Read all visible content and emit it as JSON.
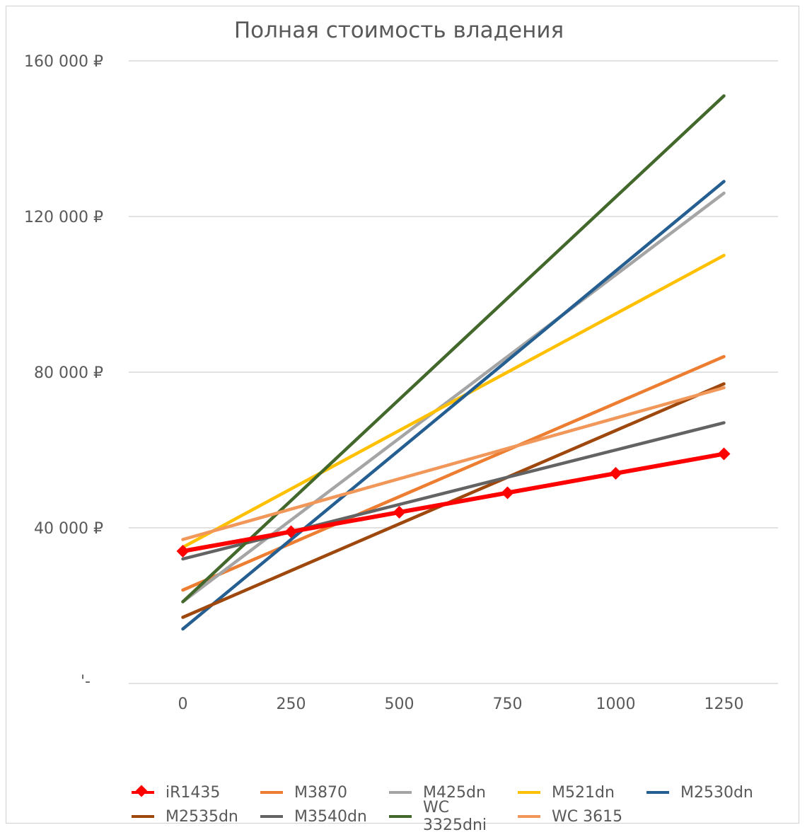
{
  "chart_data": {
    "type": "line",
    "title": "Полная стоимость владения",
    "xlabel": "",
    "ylabel": "",
    "x": [
      0,
      250,
      500,
      750,
      1000,
      1250
    ],
    "x_tick_labels": [
      "0",
      "250",
      "500",
      "750",
      "1000",
      "1250"
    ],
    "y_tick_labels": [
      "'-",
      "40 000 ₽",
      "80 000 ₽",
      "120 000 ₽",
      "160 000 ₽"
    ],
    "y_ticks": [
      0,
      40000,
      80000,
      120000,
      160000
    ],
    "ylim": [
      0,
      160000
    ],
    "xlim": [
      -125,
      1375
    ],
    "grid": "horizontal",
    "legend_position": "bottom",
    "series": [
      {
        "name": "iR1435",
        "color": "#ff0000",
        "marker": "diamond",
        "values": [
          34000,
          39000,
          44000,
          49000,
          54000,
          59000
        ]
      },
      {
        "name": "M3870",
        "color": "#ed7d31",
        "marker": "none",
        "values": [
          24000,
          36000,
          48000,
          60000,
          72000,
          84000
        ]
      },
      {
        "name": "M425dn",
        "color": "#a5a5a5",
        "marker": "none",
        "values": [
          21000,
          42000,
          63000,
          84000,
          105000,
          126000
        ]
      },
      {
        "name": "M521dn",
        "color": "#ffc000",
        "marker": "none",
        "values": [
          35000,
          50000,
          65000,
          80000,
          95000,
          110000
        ]
      },
      {
        "name": "M2530dn",
        "color": "#255e91",
        "marker": "none",
        "values": [
          14000,
          37000,
          60000,
          83000,
          106000,
          129000
        ]
      },
      {
        "name": "M2535dn",
        "color": "#9e480e",
        "marker": "none",
        "values": [
          17000,
          29000,
          41000,
          53000,
          65000,
          77000
        ]
      },
      {
        "name": "M3540dn",
        "color": "#636363",
        "marker": "none",
        "values": [
          32000,
          39000,
          46000,
          53000,
          60000,
          67000
        ]
      },
      {
        "name": "WC 3325dni",
        "color": "#43682b",
        "marker": "none",
        "values": [
          21000,
          47000,
          73000,
          99000,
          125000,
          151000
        ]
      },
      {
        "name": "WC 3615",
        "color": "#f1975a",
        "marker": "none",
        "values": [
          37000,
          44800,
          52600,
          60400,
          68200,
          76000
        ]
      }
    ]
  }
}
